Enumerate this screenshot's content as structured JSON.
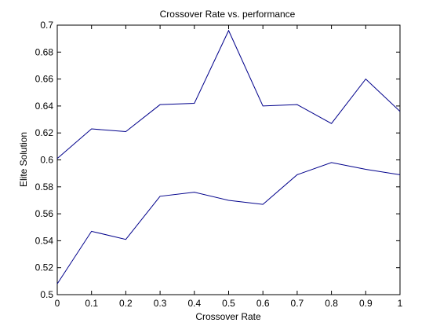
{
  "chart_data": {
    "type": "line",
    "title": "Crossover Rate vs. performance",
    "xlabel": "Crossover Rate",
    "ylabel": "Elite Solution",
    "xlim": [
      0,
      1
    ],
    "ylim": [
      0.5,
      0.7
    ],
    "x_ticks": [
      "0",
      "0.1",
      "0.2",
      "0.3",
      "0.4",
      "0.5",
      "0.6",
      "0.7",
      "0.8",
      "0.9",
      "1"
    ],
    "y_ticks": [
      "0.5",
      "0.52",
      "0.54",
      "0.56",
      "0.58",
      "0.6",
      "0.62",
      "0.64",
      "0.66",
      "0.68",
      "0.7"
    ],
    "grid": false,
    "line_color": "#00008b",
    "x": [
      0,
      0.1,
      0.2,
      0.3,
      0.4,
      0.5,
      0.6,
      0.7,
      0.8,
      0.9,
      1
    ],
    "series": [
      {
        "values": [
          0.601,
          0.623,
          0.621,
          0.641,
          0.642,
          0.696,
          0.64,
          0.641,
          0.627,
          0.66,
          0.636
        ]
      },
      {
        "values": [
          0.508,
          0.547,
          0.541,
          0.573,
          0.576,
          0.57,
          0.567,
          0.589,
          0.598,
          0.593,
          0.589
        ]
      }
    ]
  }
}
